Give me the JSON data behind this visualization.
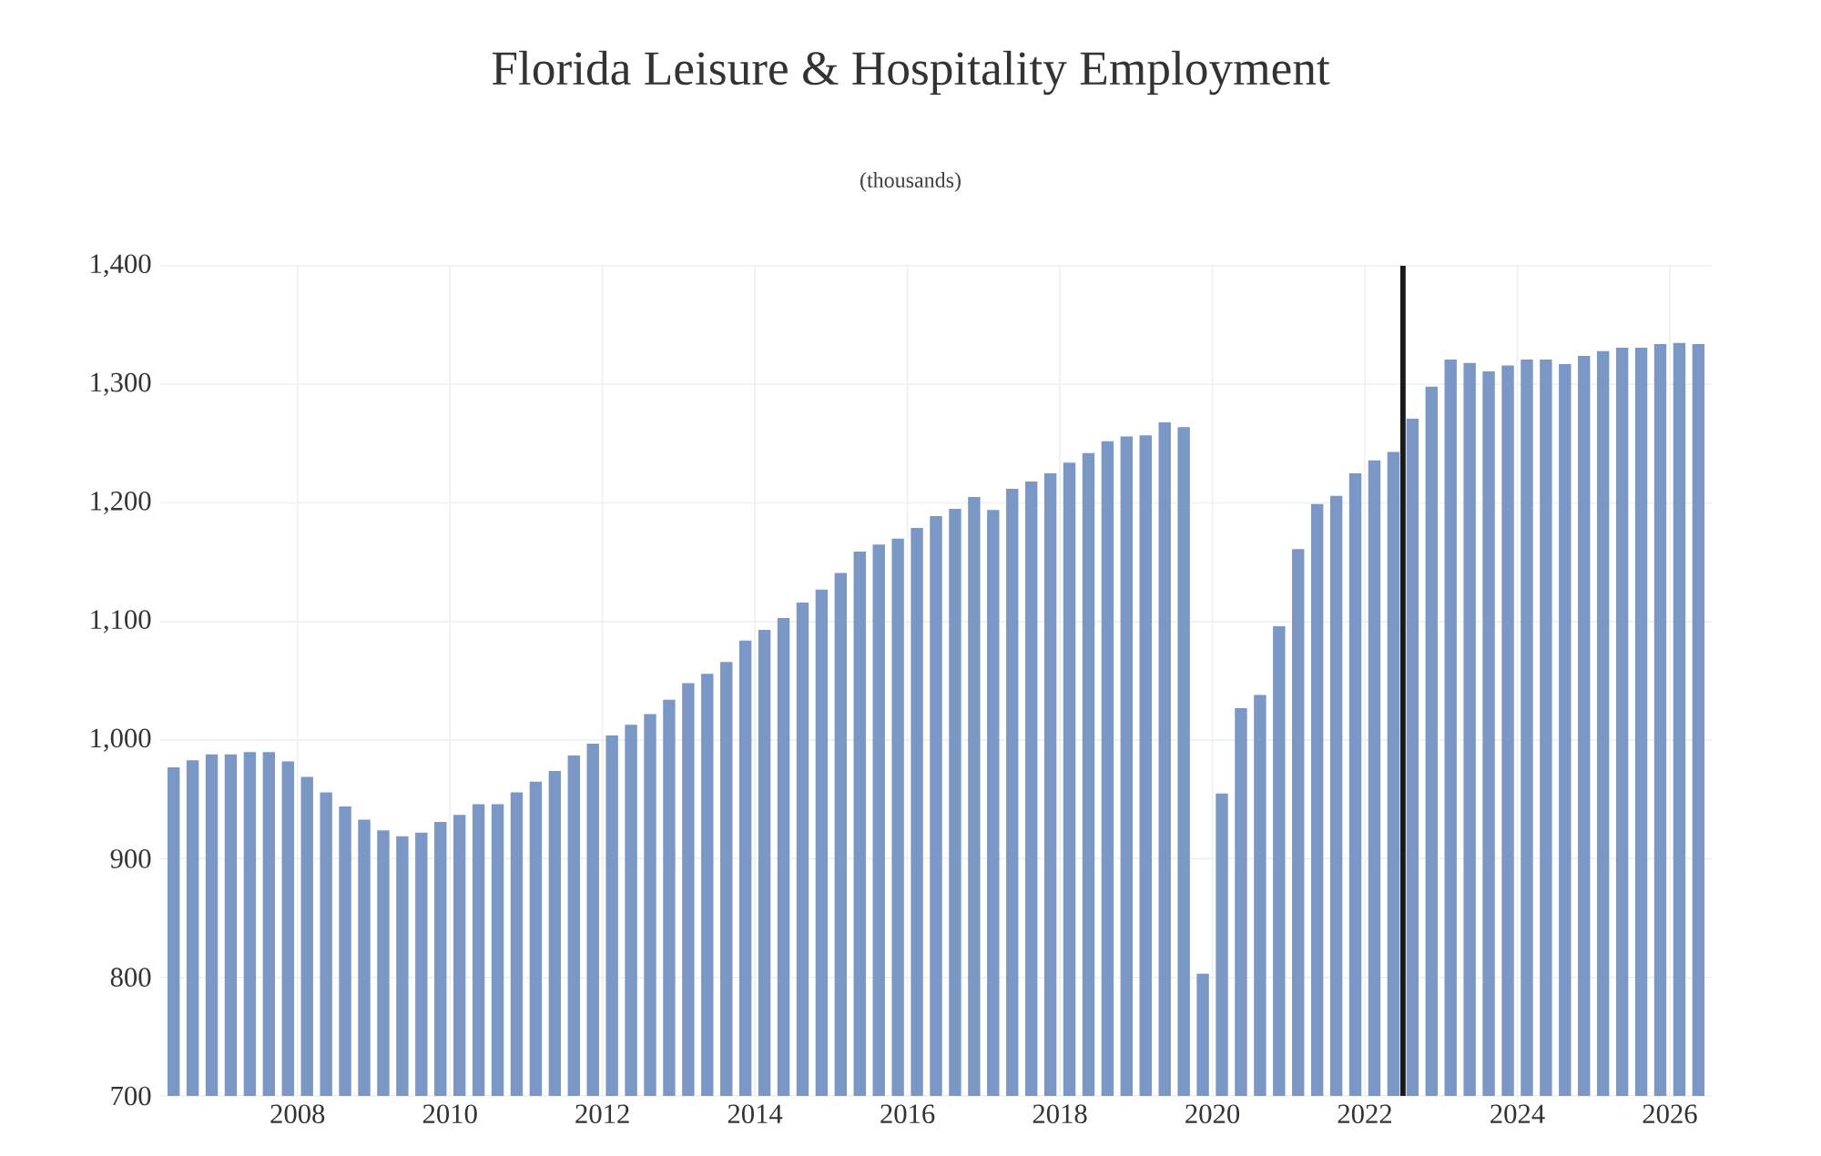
{
  "chart_data": {
    "type": "bar",
    "title": "Florida Leisure & Hospitality Employment",
    "subtitle": "(thousands)",
    "x": [
      2006.875,
      2007.125,
      2007.375,
      2007.625,
      2007.875,
      2008.125,
      2008.375,
      2008.625,
      2008.875,
      2009.125,
      2009.375,
      2009.625,
      2009.875,
      2010.125,
      2010.375,
      2010.625,
      2010.875,
      2011.125,
      2011.375,
      2011.625,
      2011.875,
      2012.125,
      2012.375,
      2012.625,
      2012.875,
      2013.125,
      2013.375,
      2013.625,
      2013.875,
      2014.125,
      2014.375,
      2014.625,
      2014.875,
      2015.125,
      2015.375,
      2015.625,
      2015.875,
      2016.125,
      2016.375,
      2016.625,
      2016.875,
      2017.125,
      2017.375,
      2017.625,
      2017.875,
      2018.125,
      2018.375,
      2018.625,
      2018.875,
      2019.125,
      2019.375,
      2019.625,
      2019.875,
      2020.125,
      2020.375,
      2020.625,
      2020.875,
      2021.125,
      2021.375,
      2021.625,
      2021.875,
      2022.125,
      2022.375,
      2022.625,
      2022.875,
      2023.125,
      2023.375,
      2023.625,
      2023.875,
      2024.125,
      2024.375,
      2024.625,
      2024.875,
      2025.125,
      2025.375,
      2025.625,
      2025.875,
      2026.125,
      2026.375,
      2026.625,
      2026.875
    ],
    "values": [
      977,
      983,
      988,
      988,
      990,
      990,
      982,
      969,
      956,
      944,
      933,
      924,
      919,
      922,
      931,
      937,
      946,
      946,
      956,
      965,
      974,
      987,
      997,
      1004,
      1013,
      1022,
      1034,
      1048,
      1056,
      1066,
      1084,
      1093,
      1103,
      1116,
      1127,
      1141,
      1159,
      1165,
      1170,
      1179,
      1189,
      1195,
      1205,
      1194,
      1212,
      1218,
      1225,
      1234,
      1242,
      1252,
      1256,
      1257,
      1268,
      1264,
      803,
      955,
      1027,
      1038,
      1096,
      1161,
      1199,
      1206,
      1225,
      1236,
      1243,
      1271,
      1298,
      1321,
      1318,
      1311,
      1316,
      1321,
      1321,
      1317,
      1324,
      1328,
      1331,
      1331,
      1334,
      1335,
      1334
    ],
    "color": "#7b97c6",
    "xlim": [
      2006.7,
      2027.05
    ],
    "xticks": [
      {
        "value": 2008.5,
        "label": "2008"
      },
      {
        "value": 2010.5,
        "label": "2010"
      },
      {
        "value": 2012.5,
        "label": "2012"
      },
      {
        "value": 2014.5,
        "label": "2014"
      },
      {
        "value": 2016.5,
        "label": "2016"
      },
      {
        "value": 2018.5,
        "label": "2018"
      },
      {
        "value": 2020.5,
        "label": "2020"
      },
      {
        "value": 2022.5,
        "label": "2022"
      },
      {
        "value": 2024.5,
        "label": "2024"
      },
      {
        "value": 2026.5,
        "label": "2026"
      }
    ],
    "ylim": [
      700,
      1400
    ],
    "yticks": [
      700,
      800,
      900,
      {
        "value": 1000,
        "label": "1,000"
      },
      {
        "value": 1100,
        "label": "1,100"
      },
      {
        "value": 1200,
        "label": "1,200"
      },
      {
        "value": 1300,
        "label": "1,300"
      },
      {
        "value": 1400,
        "label": "1,400"
      }
    ],
    "grid": true,
    "ref_lines": [
      {
        "axis": "x",
        "value": 2023.0,
        "color": "#1a1a1a"
      }
    ]
  }
}
